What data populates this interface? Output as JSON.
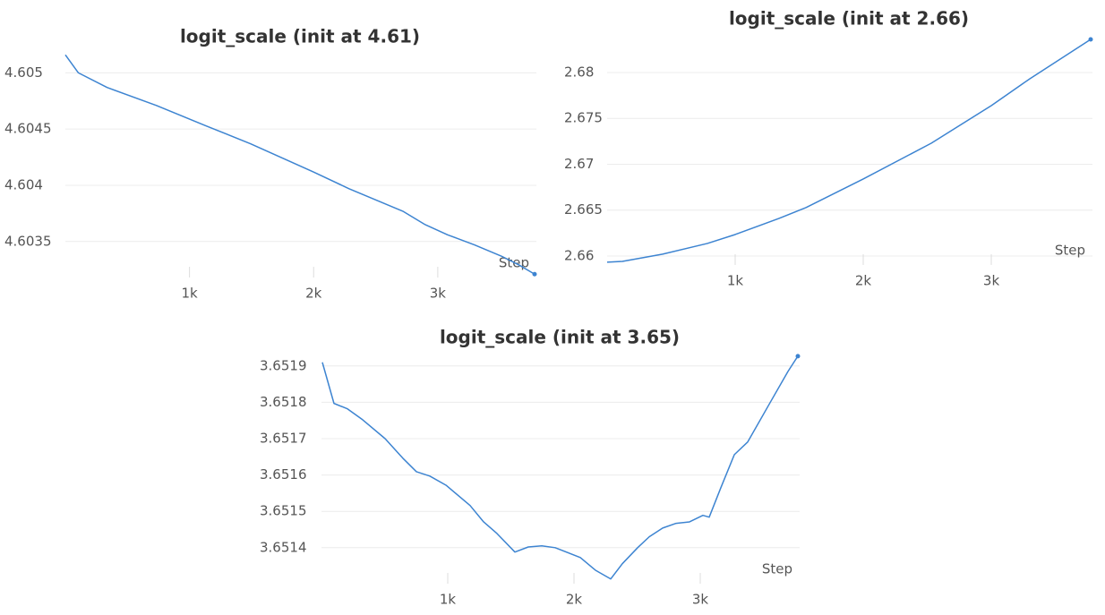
{
  "chart_data": [
    {
      "type": "line",
      "title": "logit_scale (init at 4.61)",
      "xlabel": "Step",
      "x": [
        0,
        105,
        336,
        733,
        1130,
        1491,
        1996,
        2285,
        2718,
        2899,
        3079,
        3152,
        3296,
        3513,
        3657,
        3780
      ],
      "series": [
        {
          "name": "logit_scale",
          "color": "#3d84d1",
          "values": [
            4.60516,
            4.605,
            4.60487,
            4.60471,
            4.60453,
            4.60437,
            4.60412,
            4.60397,
            4.60377,
            4.60365,
            4.60356,
            4.60353,
            4.60347,
            4.60337,
            4.60329,
            4.60321
          ]
        }
      ],
      "xlim": [
        0,
        3780
      ],
      "ylim": [
        4.60318,
        4.60521
      ],
      "xticks": [
        {
          "value": 1000,
          "label": "1k"
        },
        {
          "value": 2000,
          "label": "2k"
        },
        {
          "value": 3000,
          "label": "3k"
        }
      ],
      "yticks": [
        4.605,
        4.6045,
        4.604,
        4.6035
      ],
      "grid": true
    },
    {
      "type": "line",
      "title": "logit_scale (init at 2.66)",
      "xlabel": "Step",
      "x": [
        0,
        119,
        434,
        783,
        1000,
        1343,
        1552,
        2000,
        2531,
        3000,
        3301,
        3776
      ],
      "series": [
        {
          "name": "logit_scale",
          "color": "#3d84d1",
          "values": [
            2.65932,
            2.65941,
            2.6602,
            2.66137,
            2.66234,
            2.6641,
            2.66527,
            2.66839,
            2.67229,
            2.67639,
            2.67932,
            2.68361
          ]
        }
      ],
      "xlim": [
        0,
        3776
      ],
      "ylim": [
        2.65902,
        2.684
      ],
      "xticks": [
        {
          "value": 1000,
          "label": "1k"
        },
        {
          "value": 2000,
          "label": "2k"
        },
        {
          "value": 3000,
          "label": "3k"
        }
      ],
      "yticks": [
        2.68,
        2.675,
        2.67,
        2.665,
        2.66
      ],
      "grid": true
    },
    {
      "type": "line",
      "title": "logit_scale (init at 3.65)",
      "xlabel": "Step",
      "x": [
        7,
        99,
        206,
        326,
        504,
        645,
        752,
        858,
        986,
        1177,
        1284,
        1390,
        1532,
        1638,
        1745,
        1851,
        2050,
        2170,
        2291,
        2383,
        2504,
        2596,
        2702,
        2809,
        2915,
        3021,
        3071,
        3163,
        3270,
        3376,
        3553,
        3695,
        3773
      ],
      "series": [
        {
          "name": "logit_scale",
          "color": "#3d84d1",
          "values": [
            3.65191,
            3.651797,
            3.651782,
            3.651752,
            3.6517,
            3.651646,
            3.651609,
            3.651597,
            3.651572,
            3.651516,
            3.651471,
            3.651439,
            3.651388,
            3.651402,
            3.651405,
            3.6514,
            3.651373,
            3.651338,
            3.651314,
            3.651356,
            3.6514,
            3.65143,
            3.651454,
            3.651467,
            3.651471,
            3.651489,
            3.651484,
            3.651565,
            3.651656,
            3.651691,
            3.651799,
            3.651885,
            3.651927
          ]
        }
      ],
      "xlim": [
        0,
        3773
      ],
      "ylim": [
        3.651301,
        3.651934
      ],
      "xticks": [
        {
          "value": 1000,
          "label": "1k"
        },
        {
          "value": 2000,
          "label": "2k"
        },
        {
          "value": 3000,
          "label": "3k"
        }
      ],
      "yticks": [
        3.6519,
        3.6518,
        3.6517,
        3.6516,
        3.6515,
        3.6514
      ],
      "grid": true
    }
  ]
}
